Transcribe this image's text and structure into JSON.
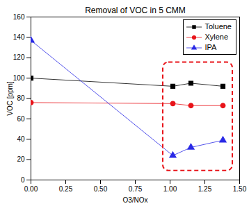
{
  "chart_data": {
    "type": "line",
    "title": "Removal of VOC in 5 CMM",
    "x_label": "O3/NOx",
    "y_label": "VOC [ppm]",
    "xlim": [
      0,
      1.5
    ],
    "xticks": [
      {
        "value": 0,
        "label": "0.00"
      },
      {
        "value": 0.25,
        "label": "0.25"
      },
      {
        "value": 0.5,
        "label": "0.50"
      },
      {
        "value": 0.75,
        "label": "0.75"
      },
      {
        "value": 1,
        "label": "1.00"
      },
      {
        "value": 1.25,
        "label": "1.25"
      },
      {
        "value": 1.5,
        "label": "1.50"
      }
    ],
    "ylim": [
      0,
      160
    ],
    "yticks": [
      0,
      20,
      40,
      60,
      80,
      100,
      120,
      140,
      160
    ],
    "grid": false,
    "legend": "top-right",
    "x": [
      0,
      1.02,
      1.15,
      1.38
    ],
    "series": [
      {
        "name": "Toluene",
        "color": "#000000",
        "marker": "square",
        "values": [
          100,
          92,
          95,
          92
        ]
      },
      {
        "name": "Xylene",
        "color": "#e8141a",
        "marker": "circle",
        "values": [
          76,
          75,
          73,
          73
        ]
      },
      {
        "name": "IPA",
        "color": "#2a2ae6",
        "marker": "triangle",
        "values": [
          137,
          24,
          32,
          39
        ]
      }
    ]
  }
}
